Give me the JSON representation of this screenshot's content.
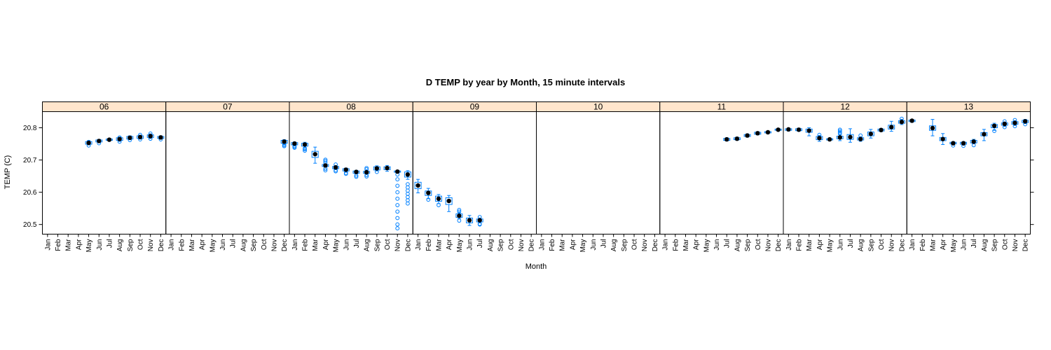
{
  "chart_data": {
    "type": "boxplot",
    "title": "D TEMP by year by Month, 15 minute intervals",
    "xlabel": "Month",
    "ylabel": "TEMP (C)",
    "ylim": [
      20.47,
      20.85
    ],
    "yticks": [
      20.5,
      20.6,
      20.7,
      20.8
    ],
    "months": [
      "Jan",
      "Feb",
      "Mar",
      "Apr",
      "May",
      "Jun",
      "Jul",
      "Aug",
      "Sep",
      "Oct",
      "Nov",
      "Dec"
    ],
    "colors": {
      "strip": "#ffe5cc",
      "box": "#0080ff",
      "median": "#000000"
    },
    "panels": [
      {
        "year": "06",
        "boxes": [
          {
            "month": "May",
            "median": 20.753,
            "q1": 20.749,
            "q3": 20.757,
            "lo": 20.747,
            "hi": 20.76,
            "out": [
              20.745,
              20.756
            ]
          },
          {
            "month": "Jun",
            "median": 20.759,
            "q1": 20.756,
            "q3": 20.762,
            "lo": 20.754,
            "hi": 20.764,
            "out": [
              20.752
            ]
          },
          {
            "month": "Jul",
            "median": 20.763,
            "q1": 20.761,
            "q3": 20.765,
            "lo": 20.76,
            "hi": 20.767,
            "out": []
          },
          {
            "month": "Aug",
            "median": 20.765,
            "q1": 20.761,
            "q3": 20.769,
            "lo": 20.758,
            "hi": 20.771,
            "out": [
              20.757,
              20.77
            ]
          },
          {
            "month": "Sep",
            "median": 20.769,
            "q1": 20.765,
            "q3": 20.773,
            "lo": 20.763,
            "hi": 20.775,
            "out": [
              20.762
            ]
          },
          {
            "month": "Oct",
            "median": 20.771,
            "q1": 20.767,
            "q3": 20.775,
            "lo": 20.765,
            "hi": 20.777,
            "out": [
              20.764,
              20.778
            ]
          },
          {
            "month": "Nov",
            "median": 20.774,
            "q1": 20.77,
            "q3": 20.778,
            "lo": 20.767,
            "hi": 20.781,
            "out": [
              20.766,
              20.782
            ]
          },
          {
            "month": "Dec",
            "median": 20.77,
            "q1": 20.767,
            "q3": 20.773,
            "lo": 20.765,
            "hi": 20.775,
            "out": [
              20.764
            ]
          }
        ]
      },
      {
        "year": "07",
        "boxes": [
          {
            "month": "Dec",
            "median": 20.757,
            "q1": 20.752,
            "q3": 20.761,
            "lo": 20.748,
            "hi": 20.763,
            "out": [
              20.743,
              20.746,
              20.75
            ]
          }
        ]
      },
      {
        "year": "08",
        "boxes": [
          {
            "month": "Jan",
            "median": 20.751,
            "q1": 20.747,
            "q3": 20.754,
            "lo": 20.745,
            "hi": 20.756,
            "out": [
              20.738,
              20.741,
              20.743
            ]
          },
          {
            "month": "Feb",
            "median": 20.748,
            "q1": 20.743,
            "q3": 20.752,
            "lo": 20.739,
            "hi": 20.755,
            "out": [
              20.729,
              20.733,
              20.736
            ]
          },
          {
            "month": "Mar",
            "median": 20.718,
            "q1": 20.708,
            "q3": 20.727,
            "lo": 20.69,
            "hi": 20.74,
            "out": []
          },
          {
            "month": "Apr",
            "median": 20.683,
            "q1": 20.68,
            "q3": 20.686,
            "lo": 20.678,
            "hi": 20.688,
            "out": [
              20.668,
              20.673,
              20.692,
              20.697,
              20.701
            ]
          },
          {
            "month": "May",
            "median": 20.677,
            "q1": 20.673,
            "q3": 20.68,
            "lo": 20.671,
            "hi": 20.683,
            "out": [
              20.665,
              20.668,
              20.686
            ]
          },
          {
            "month": "Jun",
            "median": 20.67,
            "q1": 20.666,
            "q3": 20.673,
            "lo": 20.663,
            "hi": 20.675,
            "out": [
              20.657,
              20.66
            ]
          },
          {
            "month": "Jul",
            "median": 20.663,
            "q1": 20.659,
            "q3": 20.666,
            "lo": 20.657,
            "hi": 20.668,
            "out": [
              20.648,
              20.652
            ]
          },
          {
            "month": "Aug",
            "median": 20.662,
            "q1": 20.659,
            "q3": 20.665,
            "lo": 20.657,
            "hi": 20.667,
            "out": [
              20.649,
              20.653,
              20.671,
              20.675
            ]
          },
          {
            "month": "Sep",
            "median": 20.674,
            "q1": 20.669,
            "q3": 20.679,
            "lo": 20.666,
            "hi": 20.682,
            "out": [
              20.663
            ]
          },
          {
            "month": "Oct",
            "median": 20.675,
            "q1": 20.67,
            "q3": 20.679,
            "lo": 20.665,
            "hi": 20.683,
            "out": []
          },
          {
            "month": "Nov",
            "median": 20.664,
            "q1": 20.662,
            "q3": 20.666,
            "lo": 20.66,
            "hi": 20.668,
            "out": [
              20.488,
              20.5,
              20.52,
              20.54,
              20.56,
              20.58,
              20.6,
              20.62,
              20.64,
              20.655
            ]
          },
          {
            "month": "Dec",
            "median": 20.655,
            "q1": 20.647,
            "q3": 20.663,
            "lo": 20.64,
            "hi": 20.667,
            "out": [
              20.565,
              20.575,
              20.585,
              20.595,
              20.605,
              20.615,
              20.625
            ]
          }
        ]
      },
      {
        "year": "09",
        "boxes": [
          {
            "month": "Jan",
            "median": 20.621,
            "q1": 20.611,
            "q3": 20.631,
            "lo": 20.598,
            "hi": 20.64,
            "out": []
          },
          {
            "month": "Feb",
            "median": 20.598,
            "q1": 20.59,
            "q3": 20.604,
            "lo": 20.58,
            "hi": 20.612,
            "out": [
              20.577
            ]
          },
          {
            "month": "Mar",
            "median": 20.58,
            "q1": 20.572,
            "q3": 20.588,
            "lo": 20.565,
            "hi": 20.593,
            "out": [
              20.56
            ]
          },
          {
            "month": "Apr",
            "median": 20.573,
            "q1": 20.562,
            "q3": 20.583,
            "lo": 20.54,
            "hi": 20.59,
            "out": []
          },
          {
            "month": "May",
            "median": 20.527,
            "q1": 20.522,
            "q3": 20.533,
            "lo": 20.518,
            "hi": 20.537,
            "out": [
              20.512,
              20.54,
              20.545
            ]
          },
          {
            "month": "Jun",
            "median": 20.513,
            "q1": 20.505,
            "q3": 20.52,
            "lo": 20.497,
            "hi": 20.528,
            "out": []
          },
          {
            "month": "Jul",
            "median": 20.513,
            "q1": 20.508,
            "q3": 20.517,
            "lo": 20.505,
            "hi": 20.52,
            "out": [
              20.5,
              20.502,
              20.523
            ]
          }
        ]
      },
      {
        "year": "10",
        "boxes": []
      },
      {
        "year": "11",
        "boxes": [
          {
            "month": "Jul",
            "median": 20.764,
            "q1": 20.761,
            "q3": 20.767,
            "lo": 20.759,
            "hi": 20.769,
            "out": []
          },
          {
            "month": "Aug",
            "median": 20.766,
            "q1": 20.763,
            "q3": 20.769,
            "lo": 20.761,
            "hi": 20.771,
            "out": []
          },
          {
            "month": "Sep",
            "median": 20.776,
            "q1": 20.773,
            "q3": 20.779,
            "lo": 20.771,
            "hi": 20.781,
            "out": []
          },
          {
            "month": "Oct",
            "median": 20.783,
            "q1": 20.78,
            "q3": 20.786,
            "lo": 20.778,
            "hi": 20.788,
            "out": []
          },
          {
            "month": "Nov",
            "median": 20.786,
            "q1": 20.784,
            "q3": 20.788,
            "lo": 20.782,
            "hi": 20.79,
            "out": []
          },
          {
            "month": "Dec",
            "median": 20.794,
            "q1": 20.792,
            "q3": 20.796,
            "lo": 20.79,
            "hi": 20.798,
            "out": []
          }
        ]
      },
      {
        "year": "12",
        "boxes": [
          {
            "month": "Jan",
            "median": 20.795,
            "q1": 20.792,
            "q3": 20.797,
            "lo": 20.79,
            "hi": 20.799,
            "out": []
          },
          {
            "month": "Feb",
            "median": 20.794,
            "q1": 20.791,
            "q3": 20.797,
            "lo": 20.789,
            "hi": 20.799,
            "out": []
          },
          {
            "month": "Mar",
            "median": 20.791,
            "q1": 20.786,
            "q3": 20.796,
            "lo": 20.775,
            "hi": 20.8,
            "out": []
          },
          {
            "month": "Apr",
            "median": 20.768,
            "q1": 20.763,
            "q3": 20.773,
            "lo": 20.758,
            "hi": 20.776,
            "out": [
              20.778
            ]
          },
          {
            "month": "May",
            "median": 20.764,
            "q1": 20.762,
            "q3": 20.766,
            "lo": 20.76,
            "hi": 20.768,
            "out": []
          },
          {
            "month": "Jun",
            "median": 20.77,
            "q1": 20.766,
            "q3": 20.774,
            "lo": 20.76,
            "hi": 20.778,
            "out": [
              20.782,
              20.786,
              20.79,
              20.794
            ]
          },
          {
            "month": "Jul",
            "median": 20.771,
            "q1": 20.764,
            "q3": 20.779,
            "lo": 20.755,
            "hi": 20.797,
            "out": []
          },
          {
            "month": "Aug",
            "median": 20.765,
            "q1": 20.762,
            "q3": 20.769,
            "lo": 20.758,
            "hi": 20.772,
            "out": [
              20.776
            ]
          },
          {
            "month": "Sep",
            "median": 20.781,
            "q1": 20.775,
            "q3": 20.787,
            "lo": 20.768,
            "hi": 20.795,
            "out": []
          },
          {
            "month": "Oct",
            "median": 20.793,
            "q1": 20.79,
            "q3": 20.796,
            "lo": 20.788,
            "hi": 20.798,
            "out": []
          },
          {
            "month": "Nov",
            "median": 20.802,
            "q1": 20.796,
            "q3": 20.808,
            "lo": 20.789,
            "hi": 20.82,
            "out": []
          },
          {
            "month": "Dec",
            "median": 20.818,
            "q1": 20.814,
            "q3": 20.822,
            "lo": 20.81,
            "hi": 20.826,
            "out": [
              20.828
            ]
          }
        ]
      },
      {
        "year": "13",
        "boxes": [
          {
            "month": "Jan",
            "median": 20.822,
            "q1": 20.819,
            "q3": 20.824,
            "lo": 20.817,
            "hi": 20.826,
            "out": []
          },
          {
            "month": "Mar",
            "median": 20.799,
            "q1": 20.792,
            "q3": 20.806,
            "lo": 20.775,
            "hi": 20.826,
            "out": []
          },
          {
            "month": "Apr",
            "median": 20.765,
            "q1": 20.76,
            "q3": 20.77,
            "lo": 20.748,
            "hi": 20.782,
            "out": []
          },
          {
            "month": "May",
            "median": 20.752,
            "q1": 20.75,
            "q3": 20.755,
            "lo": 20.747,
            "hi": 20.757,
            "out": [
              20.745
            ]
          },
          {
            "month": "Jun",
            "median": 20.752,
            "q1": 20.749,
            "q3": 20.755,
            "lo": 20.746,
            "hi": 20.757,
            "out": [
              20.744
            ]
          },
          {
            "month": "Jul",
            "median": 20.757,
            "q1": 20.753,
            "q3": 20.761,
            "lo": 20.75,
            "hi": 20.764,
            "out": [
              20.746
            ]
          },
          {
            "month": "Aug",
            "median": 20.78,
            "q1": 20.775,
            "q3": 20.785,
            "lo": 20.76,
            "hi": 20.795,
            "out": []
          },
          {
            "month": "Sep",
            "median": 20.806,
            "q1": 20.8,
            "q3": 20.81,
            "lo": 20.792,
            "hi": 20.814,
            "out": [
              20.79
            ]
          },
          {
            "month": "Oct",
            "median": 20.812,
            "q1": 20.808,
            "q3": 20.815,
            "lo": 20.804,
            "hi": 20.818,
            "out": [
              20.802,
              20.82
            ]
          },
          {
            "month": "Nov",
            "median": 20.815,
            "q1": 20.811,
            "q3": 20.819,
            "lo": 20.807,
            "hi": 20.822,
            "out": [
              20.805,
              20.824
            ]
          },
          {
            "month": "Dec",
            "median": 20.82,
            "q1": 20.816,
            "q3": 20.823,
            "lo": 20.813,
            "hi": 20.826,
            "out": [
              20.811
            ]
          }
        ]
      }
    ]
  }
}
